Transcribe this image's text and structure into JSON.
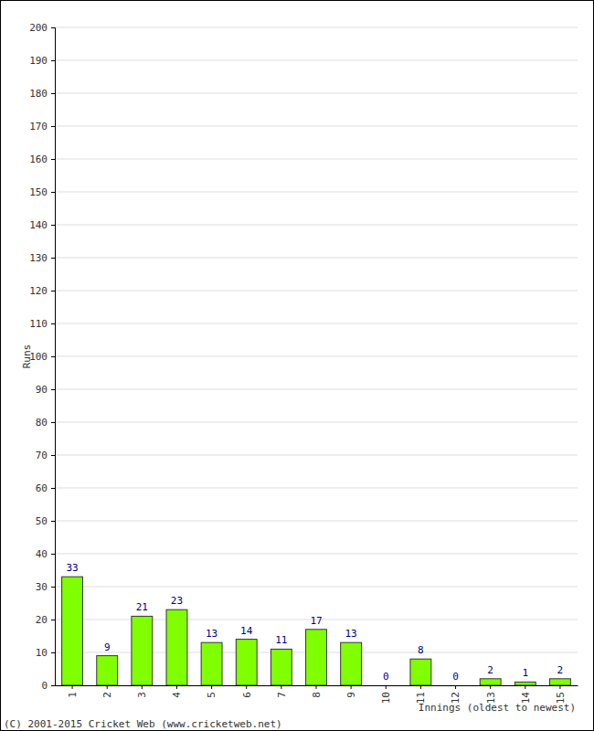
{
  "chart_data": {
    "type": "bar",
    "categories": [
      "1",
      "2",
      "3",
      "4",
      "5",
      "6",
      "7",
      "8",
      "9",
      "10",
      "11",
      "12",
      "13",
      "14",
      "15"
    ],
    "values": [
      33,
      9,
      21,
      23,
      13,
      14,
      11,
      17,
      13,
      0,
      8,
      0,
      2,
      1,
      2
    ],
    "color": "#80ff00",
    "ylim": [
      0,
      200
    ],
    "yticks": [
      0,
      10,
      20,
      30,
      40,
      50,
      60,
      70,
      80,
      90,
      100,
      110,
      120,
      130,
      140,
      150,
      160,
      170,
      180,
      190,
      200
    ],
    "grid": true,
    "data_labels": true,
    "x_label": "Innings (oldest to newest)",
    "y_label": "Runs",
    "annotations": [
      "(C) 2001-2015 Cricket Web (www.cricketweb.net)"
    ]
  }
}
